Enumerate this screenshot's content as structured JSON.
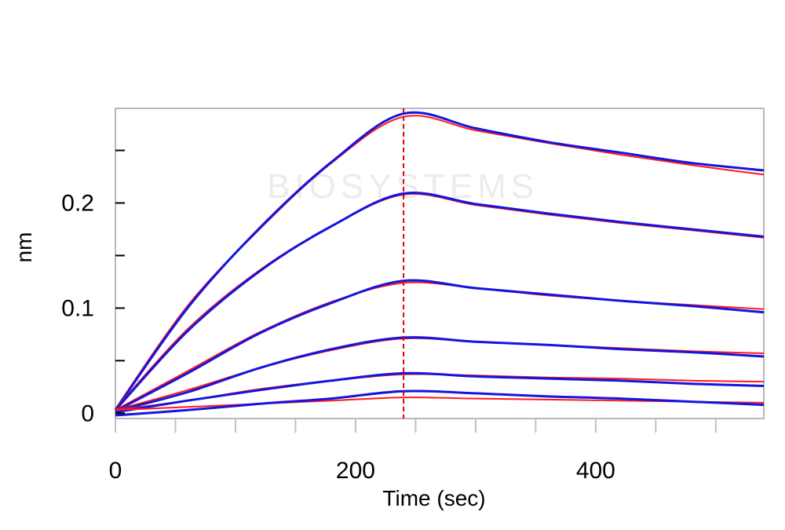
{
  "chart_data": {
    "type": "line",
    "title": "",
    "xlabel": "Time (sec)",
    "ylabel": "nm",
    "xlim": [
      0,
      540
    ],
    "ylim": [
      -0.005,
      0.29
    ],
    "x_ticks": [
      0,
      200,
      400
    ],
    "x_minor_step": 50,
    "y_ticks": [
      0,
      0.1,
      0.2
    ],
    "y_tick_labels": [
      "0",
      "0.1",
      "0.2"
    ],
    "y_minor_step": 0.05,
    "grid": false,
    "legend": "none",
    "dissociation_start": 240,
    "watermark": "BIOSYSTEMS",
    "colors": {
      "measured": "#1414e0",
      "fit": "#ff1a1a",
      "marker": "#e00000",
      "frame": "#a0a0a0"
    },
    "series": [
      {
        "kind": "fit",
        "x": [
          0,
          60,
          120,
          180,
          240,
          300,
          360,
          420,
          480,
          540
        ],
        "values": [
          0.004,
          0.102,
          0.175,
          0.238,
          0.282,
          0.269,
          0.257,
          0.246,
          0.236,
          0.227
        ]
      },
      {
        "kind": "measured",
        "x": [
          0,
          60,
          120,
          180,
          240,
          300,
          360,
          420,
          480,
          540
        ],
        "values": [
          0.003,
          0.1,
          0.176,
          0.239,
          0.285,
          0.271,
          0.258,
          0.248,
          0.238,
          0.231
        ]
      },
      {
        "kind": "fit",
        "x": [
          0,
          60,
          120,
          180,
          240,
          300,
          360,
          420,
          480,
          540
        ],
        "values": [
          0.004,
          0.08,
          0.136,
          0.178,
          0.208,
          0.198,
          0.189,
          0.181,
          0.174,
          0.167
        ]
      },
      {
        "kind": "measured",
        "x": [
          0,
          60,
          120,
          180,
          240,
          300,
          360,
          420,
          480,
          540
        ],
        "values": [
          0.003,
          0.078,
          0.135,
          0.178,
          0.209,
          0.199,
          0.19,
          0.182,
          0.175,
          0.168
        ]
      },
      {
        "kind": "fit",
        "x": [
          0,
          60,
          120,
          180,
          240,
          300,
          360,
          420,
          480,
          540
        ],
        "values": [
          0.003,
          0.04,
          0.077,
          0.106,
          0.124,
          0.119,
          0.112,
          0.107,
          0.103,
          0.099
        ]
      },
      {
        "kind": "measured",
        "x": [
          0,
          60,
          120,
          180,
          240,
          300,
          360,
          420,
          480,
          540
        ],
        "values": [
          0.002,
          0.038,
          0.076,
          0.105,
          0.126,
          0.119,
          0.113,
          0.107,
          0.102,
          0.096
        ]
      },
      {
        "kind": "fit",
        "x": [
          0,
          60,
          120,
          180,
          240,
          300,
          360,
          420,
          480,
          540
        ],
        "values": [
          0.003,
          0.022,
          0.043,
          0.06,
          0.071,
          0.068,
          0.065,
          0.062,
          0.059,
          0.057
        ]
      },
      {
        "kind": "measured",
        "x": [
          0,
          60,
          120,
          180,
          240,
          300,
          360,
          420,
          480,
          540
        ],
        "values": [
          0.002,
          0.02,
          0.043,
          0.061,
          0.072,
          0.068,
          0.065,
          0.061,
          0.058,
          0.054
        ]
      },
      {
        "kind": "fit",
        "x": [
          0,
          60,
          120,
          180,
          240,
          300,
          360,
          420,
          480,
          540
        ],
        "values": [
          0.003,
          0.012,
          0.023,
          0.031,
          0.037,
          0.036,
          0.034,
          0.033,
          0.031,
          0.03
        ]
      },
      {
        "kind": "measured",
        "x": [
          0,
          60,
          120,
          180,
          240,
          300,
          360,
          420,
          480,
          540
        ],
        "values": [
          0.001,
          0.012,
          0.022,
          0.031,
          0.038,
          0.035,
          0.033,
          0.031,
          0.028,
          0.026
        ]
      },
      {
        "kind": "fit",
        "x": [
          0,
          60,
          120,
          180,
          240,
          300,
          360,
          420,
          480,
          540
        ],
        "values": [
          0.003,
          0.006,
          0.009,
          0.012,
          0.015,
          0.014,
          0.013,
          0.012,
          0.011,
          0.01
        ]
      },
      {
        "kind": "measured",
        "x": [
          0,
          60,
          120,
          180,
          240,
          300,
          360,
          420,
          480,
          540
        ],
        "values": [
          -0.002,
          0.003,
          0.009,
          0.014,
          0.021,
          0.019,
          0.016,
          0.014,
          0.011,
          0.008
        ]
      }
    ]
  }
}
